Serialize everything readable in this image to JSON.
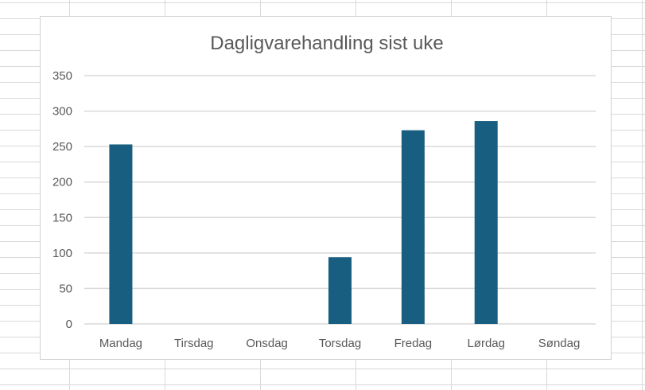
{
  "chart_data": {
    "type": "bar",
    "title": "Dagligvarehandling sist uke",
    "categories": [
      "Mandag",
      "Tirsdag",
      "Onsdag",
      "Torsdag",
      "Fredag",
      "Lørdag",
      "Søndag"
    ],
    "values": [
      253,
      0,
      0,
      94,
      273,
      286,
      0
    ],
    "ylim": [
      0,
      350
    ],
    "yticks": [
      "0",
      "50",
      "100",
      "150",
      "200",
      "250",
      "300",
      "350"
    ],
    "grid": true,
    "legend": "none",
    "bar_color": "#175e80",
    "gridline_color": "#d9d9d9"
  }
}
